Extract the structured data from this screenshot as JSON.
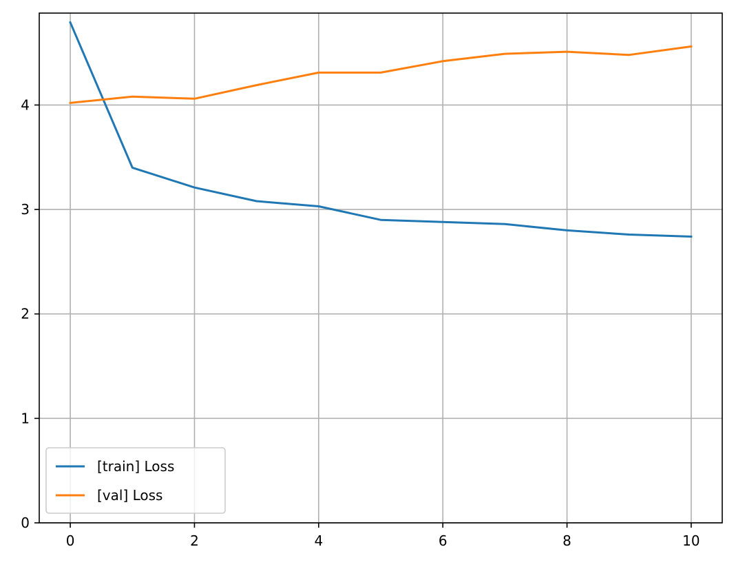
{
  "chart_data": {
    "type": "line",
    "title": "",
    "xlabel": "",
    "ylabel": "",
    "x": [
      0,
      1,
      2,
      3,
      4,
      5,
      6,
      7,
      8,
      9,
      10
    ],
    "xlim": [
      -0.5,
      10.5
    ],
    "ylim": [
      0,
      4.88
    ],
    "xticks": [
      "0",
      "2",
      "4",
      "6",
      "8",
      "10"
    ],
    "yticks": [
      "0",
      "1",
      "2",
      "3",
      "4"
    ],
    "grid": true,
    "legend_position": "lower-left",
    "series": [
      {
        "name": "[train] Loss",
        "color": "#1f77b4",
        "values": [
          4.79,
          3.4,
          3.21,
          3.08,
          3.03,
          2.9,
          2.88,
          2.86,
          2.8,
          2.76,
          2.74
        ]
      },
      {
        "name": "[val] Loss",
        "color": "#ff7f0e",
        "values": [
          4.02,
          4.08,
          4.06,
          4.19,
          4.31,
          4.31,
          4.42,
          4.49,
          4.51,
          4.48,
          4.56
        ]
      }
    ]
  }
}
